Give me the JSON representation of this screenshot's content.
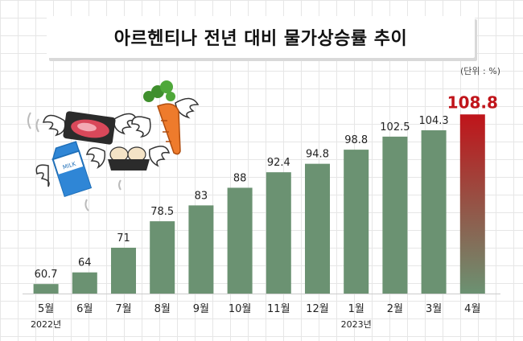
{
  "title": "아르헨티나 전년 대비 물가상승률 추이",
  "unit": "(단위 : %)",
  "colors": {
    "bar": "#6b9272",
    "highlight_top": "#c0141a",
    "highlight_bottom": "#6b9272",
    "highlight_label": "#c0141a"
  },
  "illustration": [
    "meat-pack",
    "carrot",
    "milk-carton",
    "eggs"
  ],
  "chart_data": {
    "type": "bar",
    "title": "아르헨티나 전년 대비 물가상승률 추이",
    "categories": [
      "5월",
      "6월",
      "7월",
      "8월",
      "9월",
      "10월",
      "11월",
      "12월",
      "1월",
      "2월",
      "3월",
      "4월"
    ],
    "values": [
      60.7,
      64,
      71,
      78.5,
      83,
      88,
      92.4,
      94.8,
      98.8,
      102.5,
      104.3,
      108.8
    ],
    "value_labels": [
      "60.7",
      "64",
      "71",
      "78.5",
      "83",
      "88",
      "92.4",
      "94.8",
      "98.8",
      "102.5",
      "104.3",
      "108.8"
    ],
    "year_labels": [
      {
        "category_index": 0,
        "text": "2022년"
      },
      {
        "category_index": 8,
        "text": "2023년"
      }
    ],
    "highlight_index": 11,
    "ylim": [
      58,
      110
    ],
    "grid": true,
    "xlabel": "",
    "ylabel": ""
  }
}
